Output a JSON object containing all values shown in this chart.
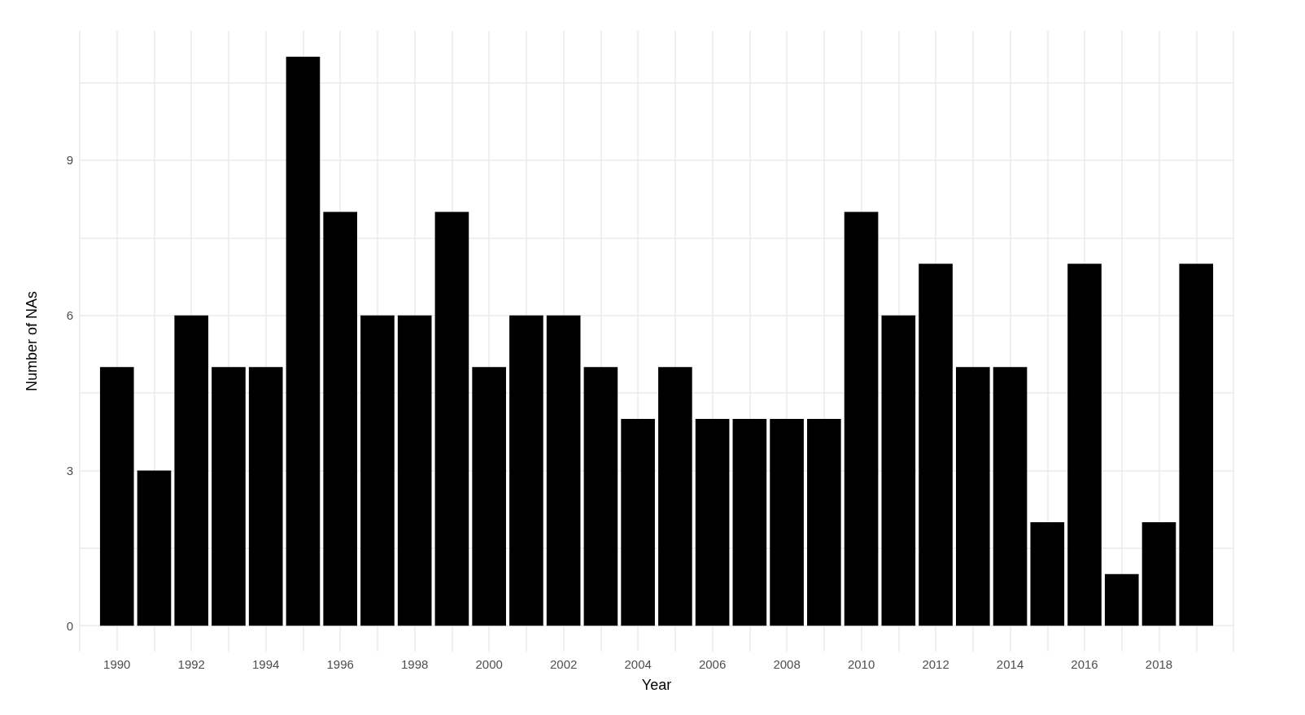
{
  "chart_data": {
    "type": "bar",
    "xlabel": "Year",
    "ylabel": "Number of NAs",
    "x": [
      1990,
      1991,
      1992,
      1993,
      1994,
      1995,
      1996,
      1997,
      1998,
      1999,
      2000,
      2001,
      2002,
      2003,
      2004,
      2005,
      2006,
      2007,
      2008,
      2009,
      2010,
      2011,
      2012,
      2013,
      2014,
      2015,
      2016,
      2017,
      2018,
      2019
    ],
    "values": [
      5,
      3,
      6,
      5,
      5,
      11,
      8,
      6,
      6,
      8,
      5,
      6,
      6,
      5,
      4,
      5,
      4,
      4,
      4,
      4,
      8,
      6,
      7,
      5,
      5,
      2,
      7,
      1,
      2,
      7
    ],
    "color": "#000000",
    "xlim": [
      1989,
      2020
    ],
    "xticks": [
      {
        "value": 1989,
        "label": null
      },
      1990,
      {
        "value": 1991,
        "label": null
      },
      1992,
      {
        "value": 1993,
        "label": null
      },
      1994,
      {
        "value": 1995,
        "label": null
      },
      1996,
      {
        "value": 1997,
        "label": null
      },
      1998,
      {
        "value": 1999,
        "label": null
      },
      2000,
      {
        "value": 2001,
        "label": null
      },
      2002,
      {
        "value": 2003,
        "label": null
      },
      2004,
      {
        "value": 2005,
        "label": null
      },
      2006,
      {
        "value": 2007,
        "label": null
      },
      2008,
      {
        "value": 2009,
        "label": null
      },
      2010,
      {
        "value": 2011,
        "label": null
      },
      2012,
      {
        "value": 2013,
        "label": null
      },
      2014,
      {
        "value": 2015,
        "label": null
      },
      2016,
      {
        "value": 2017,
        "label": null
      },
      2018,
      {
        "value": 2019,
        "label": null
      },
      {
        "value": 2020,
        "label": null
      }
    ],
    "ylim": [
      -0.5,
      11.5
    ],
    "yticks": [
      0,
      {
        "value": 1.5,
        "label": null
      },
      3,
      {
        "value": 4.5,
        "label": null
      },
      6,
      {
        "value": 7.5,
        "label": null
      },
      9,
      {
        "value": 10.5,
        "label": null
      }
    ],
    "grid": true
  }
}
